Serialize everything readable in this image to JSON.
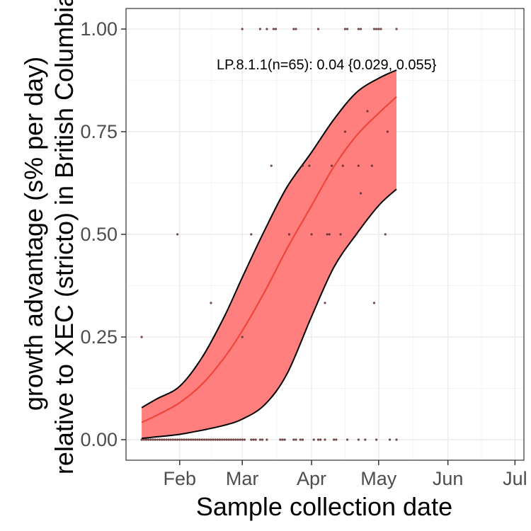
{
  "chart_data": {
    "type": "scatter",
    "xlabel": "Sample collection date",
    "ylabel_lines": [
      "growth advantage (s% per day)",
      "relative to XEC (stricto) in British Columbia"
    ],
    "annotation": "LP.8.1.1(n=65): 0.04 {0.029, 0.055}",
    "x_axis": {
      "type": "date",
      "range": [
        "2025-01-08",
        "2025-07-05"
      ],
      "ticks": [
        {
          "date": "2025-02-01",
          "label": "Feb"
        },
        {
          "date": "2025-03-01",
          "label": "Mar"
        },
        {
          "date": "2025-04-01",
          "label": "Apr"
        },
        {
          "date": "2025-05-01",
          "label": "May"
        },
        {
          "date": "2025-06-01",
          "label": "Jun"
        },
        {
          "date": "2025-07-01",
          "label": "Jul"
        }
      ]
    },
    "y_axis": {
      "range": [
        -0.05,
        1.05
      ],
      "ticks": [
        {
          "value": 0.0,
          "label": "0.00"
        },
        {
          "value": 0.25,
          "label": "0.25"
        },
        {
          "value": 0.5,
          "label": "0.50"
        },
        {
          "value": 0.75,
          "label": "0.75"
        },
        {
          "value": 1.0,
          "label": "1.00"
        }
      ]
    },
    "grid": true,
    "colors": {
      "ribbon": "#ff7f7f",
      "fit_line": "#f0453a",
      "band_edge": "#000000",
      "points": "#5a2a2a",
      "grid_major": "#ebebeb",
      "grid_minor": "#f4f4f4",
      "panel_border": "#333333"
    },
    "fit": {
      "x": [
        "2025-01-15",
        "2025-01-22",
        "2025-02-01",
        "2025-02-11",
        "2025-02-21",
        "2025-03-01",
        "2025-03-11",
        "2025-03-21",
        "2025-04-01",
        "2025-04-11",
        "2025-04-21",
        "2025-05-01",
        "2025-05-09"
      ],
      "mid": [
        0.042,
        0.06,
        0.09,
        0.135,
        0.2,
        0.265,
        0.36,
        0.465,
        0.57,
        0.665,
        0.74,
        0.795,
        0.835
      ],
      "lower": [
        0.003,
        0.007,
        0.013,
        0.023,
        0.035,
        0.05,
        0.085,
        0.16,
        0.3,
        0.42,
        0.5,
        0.57,
        0.61
      ],
      "upper": [
        0.078,
        0.1,
        0.13,
        0.2,
        0.3,
        0.395,
        0.51,
        0.615,
        0.7,
        0.78,
        0.845,
        0.88,
        0.9
      ]
    },
    "points": [
      {
        "x": "2025-01-15",
        "y": 0.0
      },
      {
        "x": "2025-01-16",
        "y": 0.0
      },
      {
        "x": "2025-01-17",
        "y": 0.0
      },
      {
        "x": "2025-01-18",
        "y": 0.0
      },
      {
        "x": "2025-01-19",
        "y": 0.0
      },
      {
        "x": "2025-01-20",
        "y": 0.0
      },
      {
        "x": "2025-01-21",
        "y": 0.0
      },
      {
        "x": "2025-01-22",
        "y": 0.0
      },
      {
        "x": "2025-01-23",
        "y": 0.0
      },
      {
        "x": "2025-01-24",
        "y": 0.0
      },
      {
        "x": "2025-01-25",
        "y": 0.0
      },
      {
        "x": "2025-01-26",
        "y": 0.0
      },
      {
        "x": "2025-01-27",
        "y": 0.0
      },
      {
        "x": "2025-01-28",
        "y": 0.0
      },
      {
        "x": "2025-01-29",
        "y": 0.0
      },
      {
        "x": "2025-01-30",
        "y": 0.0
      },
      {
        "x": "2025-01-31",
        "y": 0.0
      },
      {
        "x": "2025-02-01",
        "y": 0.0
      },
      {
        "x": "2025-02-02",
        "y": 0.0
      },
      {
        "x": "2025-02-03",
        "y": 0.0
      },
      {
        "x": "2025-02-04",
        "y": 0.0
      },
      {
        "x": "2025-02-05",
        "y": 0.0
      },
      {
        "x": "2025-02-06",
        "y": 0.0
      },
      {
        "x": "2025-02-07",
        "y": 0.0
      },
      {
        "x": "2025-02-08",
        "y": 0.0
      },
      {
        "x": "2025-02-09",
        "y": 0.0
      },
      {
        "x": "2025-02-10",
        "y": 0.0
      },
      {
        "x": "2025-02-11",
        "y": 0.0
      },
      {
        "x": "2025-02-12",
        "y": 0.0
      },
      {
        "x": "2025-02-13",
        "y": 0.0
      },
      {
        "x": "2025-02-14",
        "y": 0.0
      },
      {
        "x": "2025-02-15",
        "y": 0.0
      },
      {
        "x": "2025-02-16",
        "y": 0.0
      },
      {
        "x": "2025-02-17",
        "y": 0.0
      },
      {
        "x": "2025-02-18",
        "y": 0.0
      },
      {
        "x": "2025-02-19",
        "y": 0.0
      },
      {
        "x": "2025-02-20",
        "y": 0.0
      },
      {
        "x": "2025-02-21",
        "y": 0.0
      },
      {
        "x": "2025-02-22",
        "y": 0.0
      },
      {
        "x": "2025-02-23",
        "y": 0.0
      },
      {
        "x": "2025-02-24",
        "y": 0.0
      },
      {
        "x": "2025-02-25",
        "y": 0.0
      },
      {
        "x": "2025-02-26",
        "y": 0.0
      },
      {
        "x": "2025-02-27",
        "y": 0.0
      },
      {
        "x": "2025-02-28",
        "y": 0.0
      },
      {
        "x": "2025-03-01",
        "y": 0.0
      },
      {
        "x": "2025-03-02",
        "y": 0.0
      },
      {
        "x": "2025-03-05",
        "y": 0.0
      },
      {
        "x": "2025-03-06",
        "y": 0.0
      },
      {
        "x": "2025-03-07",
        "y": 0.0
      },
      {
        "x": "2025-03-09",
        "y": 0.0
      },
      {
        "x": "2025-03-10",
        "y": 0.0
      },
      {
        "x": "2025-03-12",
        "y": 0.0
      },
      {
        "x": "2025-03-18",
        "y": 0.0
      },
      {
        "x": "2025-03-19",
        "y": 0.0
      },
      {
        "x": "2025-03-20",
        "y": 0.0
      },
      {
        "x": "2025-03-24",
        "y": 0.0
      },
      {
        "x": "2025-03-25",
        "y": 0.0
      },
      {
        "x": "2025-03-27",
        "y": 0.0
      },
      {
        "x": "2025-03-28",
        "y": 0.0
      },
      {
        "x": "2025-04-02",
        "y": 0.0
      },
      {
        "x": "2025-04-04",
        "y": 0.0
      },
      {
        "x": "2025-04-05",
        "y": 0.0
      },
      {
        "x": "2025-04-07",
        "y": 0.0
      },
      {
        "x": "2025-04-11",
        "y": 0.0
      },
      {
        "x": "2025-04-12",
        "y": 0.0
      },
      {
        "x": "2025-04-17",
        "y": 0.0
      },
      {
        "x": "2025-04-22",
        "y": 0.0
      },
      {
        "x": "2025-04-25",
        "y": 0.0
      },
      {
        "x": "2025-04-30",
        "y": 0.0
      },
      {
        "x": "2025-05-06",
        "y": 0.0
      },
      {
        "x": "2025-05-09",
        "y": 0.0
      },
      {
        "x": "2025-01-15",
        "y": 0.25
      },
      {
        "x": "2025-01-31",
        "y": 0.5
      },
      {
        "x": "2025-02-15",
        "y": 0.333
      },
      {
        "x": "2025-03-01",
        "y": 0.25
      },
      {
        "x": "2025-03-05",
        "y": 0.5
      },
      {
        "x": "2025-03-14",
        "y": 0.667
      },
      {
        "x": "2025-03-22",
        "y": 0.5
      },
      {
        "x": "2025-03-28",
        "y": 0.667
      },
      {
        "x": "2025-03-31",
        "y": 0.667
      },
      {
        "x": "2025-04-01",
        "y": 0.5
      },
      {
        "x": "2025-04-07",
        "y": 0.333
      },
      {
        "x": "2025-04-08",
        "y": 0.5
      },
      {
        "x": "2025-04-09",
        "y": 0.5
      },
      {
        "x": "2025-04-10",
        "y": 0.667
      },
      {
        "x": "2025-04-14",
        "y": 0.5
      },
      {
        "x": "2025-04-15",
        "y": 0.667
      },
      {
        "x": "2025-04-16",
        "y": 0.75
      },
      {
        "x": "2025-04-21",
        "y": 0.5
      },
      {
        "x": "2025-04-22",
        "y": 0.667
      },
      {
        "x": "2025-04-23",
        "y": 0.6
      },
      {
        "x": "2025-04-26",
        "y": 0.8
      },
      {
        "x": "2025-04-28",
        "y": 0.667
      },
      {
        "x": "2025-04-29",
        "y": 0.333
      },
      {
        "x": "2025-05-04",
        "y": 0.5
      },
      {
        "x": "2025-05-05",
        "y": 0.75
      },
      {
        "x": "2025-03-01",
        "y": 1.0
      },
      {
        "x": "2025-03-09",
        "y": 1.0
      },
      {
        "x": "2025-03-12",
        "y": 1.0
      },
      {
        "x": "2025-03-15",
        "y": 1.0
      },
      {
        "x": "2025-03-16",
        "y": 1.0
      },
      {
        "x": "2025-03-24",
        "y": 1.0
      },
      {
        "x": "2025-03-25",
        "y": 1.0
      },
      {
        "x": "2025-04-04",
        "y": 1.0
      },
      {
        "x": "2025-04-16",
        "y": 1.0
      },
      {
        "x": "2025-04-17",
        "y": 1.0
      },
      {
        "x": "2025-04-22",
        "y": 1.0
      },
      {
        "x": "2025-04-23",
        "y": 1.0
      },
      {
        "x": "2025-04-29",
        "y": 1.0
      },
      {
        "x": "2025-04-30",
        "y": 1.0
      },
      {
        "x": "2025-05-01",
        "y": 1.0
      },
      {
        "x": "2025-05-02",
        "y": 1.0
      },
      {
        "x": "2025-05-09",
        "y": 1.0
      }
    ]
  }
}
